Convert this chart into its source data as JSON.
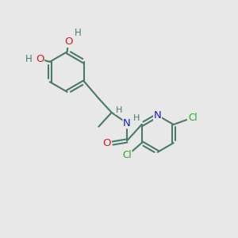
{
  "background_color": "#e8e8e8",
  "bond_color": "#4a7a6a",
  "bond_width": 1.5,
  "atom_colors": {
    "C": "#4a7a6a",
    "N": "#1a1acc",
    "O": "#cc2222",
    "Cl": "#22aa22",
    "H": "#4a7a6a"
  },
  "font_size": 8.5,
  "figsize": [
    3.0,
    3.0
  ],
  "dpi": 100
}
